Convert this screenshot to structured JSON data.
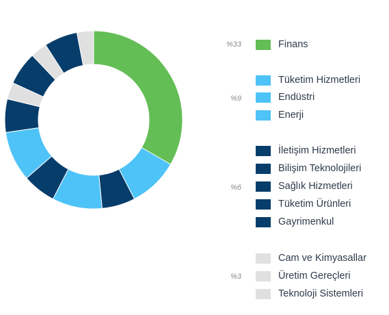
{
  "chart_data": {
    "type": "donut",
    "slices": [
      {
        "name": "Finans",
        "value": 33,
        "color": "#63be55"
      },
      {
        "name": "Tüketim Hizmetleri",
        "value": 9,
        "color": "#4ec3f7"
      },
      {
        "name": "Gayrimenkul",
        "value": 6,
        "color": "#073d6b"
      },
      {
        "name": "Endüstri",
        "value": 9,
        "color": "#4ec3f7"
      },
      {
        "name": "Tüketim Ürünleri",
        "value": 6,
        "color": "#073d6b"
      },
      {
        "name": "Enerji",
        "value": 9,
        "color": "#4ec3f7"
      },
      {
        "name": "Sağlık Hizmetleri",
        "value": 6,
        "color": "#073d6b"
      },
      {
        "name": "Teknoloji Sistemleri",
        "value": 3,
        "color": "#e0e0e0"
      },
      {
        "name": "Bilişim Teknolojileri",
        "value": 6,
        "color": "#073d6b"
      },
      {
        "name": "Üretim Gereçleri",
        "value": 3,
        "color": "#e0e0e0"
      },
      {
        "name": "İletişim Hizmetleri",
        "value": 6,
        "color": "#073d6b"
      },
      {
        "name": "Cam ve Kimyasallar",
        "value": 3,
        "color": "#e0e0e0"
      }
    ]
  },
  "legend": {
    "groups": [
      {
        "pct": "%33",
        "color": "#63be55",
        "items": [
          "Finans"
        ]
      },
      {
        "pct": "%9",
        "color": "#4ec3f7",
        "items": [
          "Tüketim Hizmetleri",
          "Endüstri",
          "Enerji"
        ]
      },
      {
        "pct": "%6",
        "color": "#073d6b",
        "items": [
          "İletişim Hizmetleri",
          "Bilişim Teknolojileri",
          "Sağlık Hizmetleri",
          "Tüketim Ürünleri",
          "Gayrimenkul"
        ]
      },
      {
        "pct": "%3",
        "color": "#e0e0e0",
        "items": [
          "Cam ve Kimyasallar",
          "Üretim Gereçleri",
          "Teknoloji Sistemleri"
        ]
      }
    ]
  }
}
